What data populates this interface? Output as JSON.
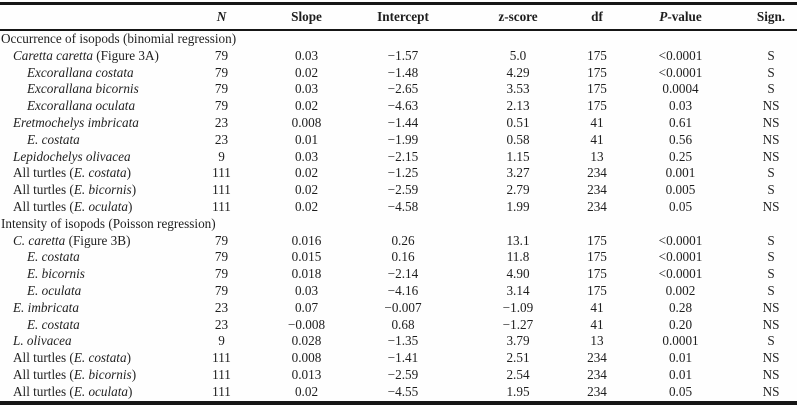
{
  "colors": {
    "background": "#fefefe",
    "text": "#1e1e1e",
    "rule": "#161616"
  },
  "table": {
    "value_keys": [
      "n",
      "slope",
      "intercept",
      "z-score",
      "df",
      "p-value",
      "sign"
    ],
    "headers": [
      {
        "key": "label",
        "parts": [
          {
            "t": ""
          }
        ]
      },
      {
        "key": "n",
        "parts": [
          {
            "t": "N",
            "i": true
          }
        ]
      },
      {
        "key": "slope",
        "parts": [
          {
            "t": "Slope"
          }
        ]
      },
      {
        "key": "intercept",
        "parts": [
          {
            "t": "Intercept"
          }
        ]
      },
      {
        "key": "z-score",
        "parts": [
          {
            "t": "z-score"
          }
        ]
      },
      {
        "key": "df",
        "parts": [
          {
            "t": "df"
          }
        ]
      },
      {
        "key": "p-value",
        "parts": [
          {
            "t": "P",
            "i": true
          },
          {
            "t": "-value"
          }
        ]
      },
      {
        "key": "sign",
        "parts": [
          {
            "t": "Sign."
          }
        ]
      }
    ],
    "sections": [
      {
        "title": "Occurrence of isopods (binomial regression)",
        "rows": [
          {
            "indent": 1,
            "label_parts": [
              {
                "t": "Caretta caretta",
                "i": true
              },
              {
                "t": " (Figure 3A)"
              }
            ],
            "values": [
              "79",
              "0.03",
              "−1.57",
              "5.0",
              "175",
              "<0.0001",
              "S"
            ]
          },
          {
            "indent": 2,
            "label_parts": [
              {
                "t": "Excorallana costata",
                "i": true
              }
            ],
            "values": [
              "79",
              "0.02",
              "−1.48",
              "4.29",
              "175",
              "<0.0001",
              "S"
            ]
          },
          {
            "indent": 2,
            "label_parts": [
              {
                "t": "Excorallana bicornis",
                "i": true
              }
            ],
            "values": [
              "79",
              "0.03",
              "−2.65",
              "3.53",
              "175",
              "0.0004",
              "S"
            ]
          },
          {
            "indent": 2,
            "label_parts": [
              {
                "t": "Excorallana oculata",
                "i": true
              }
            ],
            "values": [
              "79",
              "0.02",
              "−4.63",
              "2.13",
              "175",
              "0.03",
              "NS"
            ]
          },
          {
            "indent": 1,
            "label_parts": [
              {
                "t": "Eretmochelys imbricata",
                "i": true
              }
            ],
            "values": [
              "23",
              "0.008",
              "−1.44",
              "0.51",
              "41",
              "0.61",
              "NS"
            ]
          },
          {
            "indent": 2,
            "label_parts": [
              {
                "t": "E. costata",
                "i": true
              }
            ],
            "values": [
              "23",
              "0.01",
              "−1.99",
              "0.58",
              "41",
              "0.56",
              "NS"
            ]
          },
          {
            "indent": 1,
            "label_parts": [
              {
                "t": "Lepidochelys olivacea",
                "i": true
              }
            ],
            "values": [
              "9",
              "0.03",
              "−2.15",
              "1.15",
              "13",
              "0.25",
              "NS"
            ]
          },
          {
            "indent": 1,
            "label_parts": [
              {
                "t": "All turtles ("
              },
              {
                "t": "E. costata",
                "i": true
              },
              {
                "t": ")"
              }
            ],
            "values": [
              "111",
              "0.02",
              "−1.25",
              "3.27",
              "234",
              "0.001",
              "S"
            ]
          },
          {
            "indent": 1,
            "label_parts": [
              {
                "t": "All turtles ("
              },
              {
                "t": "E. bicornis",
                "i": true
              },
              {
                "t": ")"
              }
            ],
            "values": [
              "111",
              "0.02",
              "−2.59",
              "2.79",
              "234",
              "0.005",
              "S"
            ]
          },
          {
            "indent": 1,
            "label_parts": [
              {
                "t": "All turtles ("
              },
              {
                "t": "E. oculata",
                "i": true
              },
              {
                "t": ")"
              }
            ],
            "values": [
              "111",
              "0.02",
              "−4.58",
              "1.99",
              "234",
              "0.05",
              "NS"
            ]
          }
        ]
      },
      {
        "title": "Intensity of isopods (Poisson regression)",
        "rows": [
          {
            "indent": 1,
            "label_parts": [
              {
                "t": "C. caretta",
                "i": true
              },
              {
                "t": " (Figure 3B)"
              }
            ],
            "values": [
              "79",
              "0.016",
              "0.26",
              "13.1",
              "175",
              "<0.0001",
              "S"
            ]
          },
          {
            "indent": 2,
            "label_parts": [
              {
                "t": "E. costata",
                "i": true
              }
            ],
            "values": [
              "79",
              "0.015",
              "0.16",
              "11.8",
              "175",
              "<0.0001",
              "S"
            ]
          },
          {
            "indent": 2,
            "label_parts": [
              {
                "t": "E. bicornis",
                "i": true
              }
            ],
            "values": [
              "79",
              "0.018",
              "−2.14",
              "4.90",
              "175",
              "<0.0001",
              "S"
            ]
          },
          {
            "indent": 2,
            "label_parts": [
              {
                "t": "E. oculata",
                "i": true
              }
            ],
            "values": [
              "79",
              "0.03",
              "−4.16",
              "3.14",
              "175",
              "0.002",
              "S"
            ]
          },
          {
            "indent": 1,
            "label_parts": [
              {
                "t": "E. imbricata",
                "i": true
              }
            ],
            "values": [
              "23",
              "0.07",
              "−0.007",
              "−1.09",
              "41",
              "0.28",
              "NS"
            ]
          },
          {
            "indent": 2,
            "label_parts": [
              {
                "t": "E. costata",
                "i": true
              }
            ],
            "values": [
              "23",
              "−0.008",
              "0.68",
              "−1.27",
              "41",
              "0.20",
              "NS"
            ]
          },
          {
            "indent": 1,
            "label_parts": [
              {
                "t": "L. olivacea",
                "i": true
              }
            ],
            "values": [
              "9",
              "0.028",
              "−1.35",
              "3.79",
              "13",
              "0.0001",
              "S"
            ]
          },
          {
            "indent": 1,
            "label_parts": [
              {
                "t": "All turtles ("
              },
              {
                "t": "E. costata",
                "i": true
              },
              {
                "t": ")"
              }
            ],
            "values": [
              "111",
              "0.008",
              "−1.41",
              "2.51",
              "234",
              "0.01",
              "NS"
            ]
          },
          {
            "indent": 1,
            "label_parts": [
              {
                "t": "All turtles ("
              },
              {
                "t": "E. bicornis",
                "i": true
              },
              {
                "t": ")"
              }
            ],
            "values": [
              "111",
              "0.013",
              "−2.59",
              "2.54",
              "234",
              "0.01",
              "NS"
            ]
          },
          {
            "indent": 1,
            "label_parts": [
              {
                "t": "All turtles ("
              },
              {
                "t": "E. oculata",
                "i": true
              },
              {
                "t": ")"
              }
            ],
            "values": [
              "111",
              "0.02",
              "−4.55",
              "1.95",
              "234",
              "0.05",
              "NS"
            ]
          }
        ]
      }
    ]
  }
}
